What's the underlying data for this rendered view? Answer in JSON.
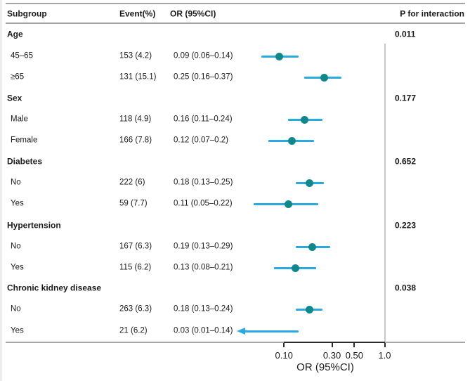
{
  "chart_data": {
    "type": "scatter",
    "subtype": "forest-plot",
    "title": "",
    "xlabel": "OR (95%CI)",
    "x_scale": "log",
    "x_ticks": [
      "0.10",
      "0.30",
      "0.50",
      "1.0"
    ],
    "x_tick_values": [
      0.1,
      0.3,
      0.5,
      1.0
    ],
    "xlim": [
      0.034,
      1.0
    ],
    "ref_line": 1.0,
    "legend": "none",
    "grid": false,
    "columns": [
      "Subgroup",
      "Event(%)",
      "OR (95%CI)",
      "P for interaction"
    ],
    "groups": [
      {
        "label": "Age",
        "p_interaction": "0.011",
        "rows": [
          {
            "label": "45–65",
            "event": "153 (4.2)",
            "or_text": "0.09 (0.06–0.14)",
            "or": 0.09,
            "lo": 0.06,
            "hi": 0.14
          },
          {
            "label": "≥65",
            "event": "131 (15.1)",
            "or_text": "0.25 (0.16–0.37)",
            "or": 0.25,
            "lo": 0.16,
            "hi": 0.37
          }
        ]
      },
      {
        "label": "Sex",
        "p_interaction": "0.177",
        "rows": [
          {
            "label": "Male",
            "event": "118 (4.9)",
            "or_text": "0.16 (0.11–0.24)",
            "or": 0.16,
            "lo": 0.11,
            "hi": 0.24
          },
          {
            "label": "Female",
            "event": "166 (7.8)",
            "or_text": "0.12 (0.07–0.2)",
            "or": 0.12,
            "lo": 0.07,
            "hi": 0.2
          }
        ]
      },
      {
        "label": "Diabetes",
        "p_interaction": "0.652",
        "rows": [
          {
            "label": "No",
            "event": "222 (6)",
            "or_text": "0.18 (0.13–0.25)",
            "or": 0.18,
            "lo": 0.13,
            "hi": 0.25
          },
          {
            "label": "Yes",
            "event": "59 (7.7)",
            "or_text": "0.11 (0.05–0.22)",
            "or": 0.11,
            "lo": 0.05,
            "hi": 0.22
          }
        ]
      },
      {
        "label": "Hypertension",
        "p_interaction": "0.223",
        "rows": [
          {
            "label": "No",
            "event": "167 (6.3)",
            "or_text": "0.19 (0.13–0.29)",
            "or": 0.19,
            "lo": 0.13,
            "hi": 0.29
          },
          {
            "label": "Yes",
            "event": "115 (6.2)",
            "or_text": "0.13 (0.08–0.21)",
            "or": 0.13,
            "lo": 0.08,
            "hi": 0.21
          }
        ]
      },
      {
        "label": "Chronic kidney disease",
        "p_interaction": "0.038",
        "rows": [
          {
            "label": "No",
            "event": "263 (6.3)",
            "or_text": "0.18 (0.13–0.24)",
            "or": 0.18,
            "lo": 0.13,
            "hi": 0.24
          },
          {
            "label": "Yes",
            "event": "21 (6.2)",
            "or_text": "0.03 (0.01–0.14)",
            "or": 0.03,
            "lo": 0.01,
            "hi": 0.14,
            "clipped_left": true
          }
        ]
      }
    ]
  },
  "colors": {
    "ci_line": "#29abe2",
    "point": "#10878b",
    "rule": "#a6a6a6",
    "ref_line": "#c9c9c9",
    "axis": "#2b2b2b",
    "text": "#1a1a1a"
  }
}
